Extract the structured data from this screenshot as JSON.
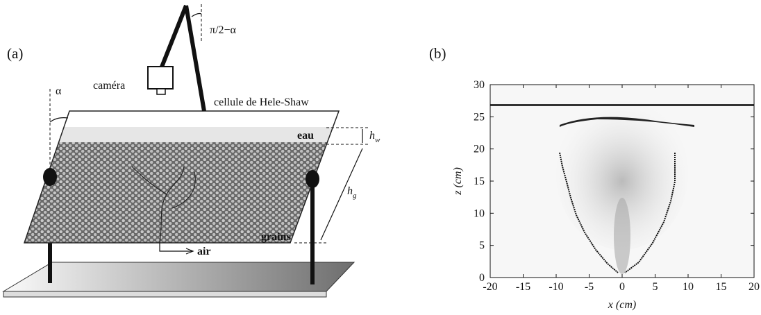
{
  "panel_a": {
    "label": "(a)",
    "camera": "caméra",
    "cell": "cellule de Hele-Shaw",
    "angle_top": "π/2−α",
    "angle_side": "α",
    "water": "eau",
    "grains": "grains",
    "air": "air",
    "hw": {
      "symbol": "h",
      "subscript": "w"
    },
    "hg": {
      "symbol": "h",
      "subscript": "g"
    }
  },
  "panel_b": {
    "label": "(b)",
    "xlabel": "x (cm)",
    "ylabel": "z (cm)",
    "xlim": [
      -20,
      20
    ],
    "ylim": [
      0,
      30
    ],
    "xticks": [
      -20,
      -15,
      -10,
      -5,
      0,
      5,
      10,
      15,
      20
    ],
    "yticks": [
      0,
      5,
      10,
      15,
      20,
      25,
      30
    ]
  }
}
